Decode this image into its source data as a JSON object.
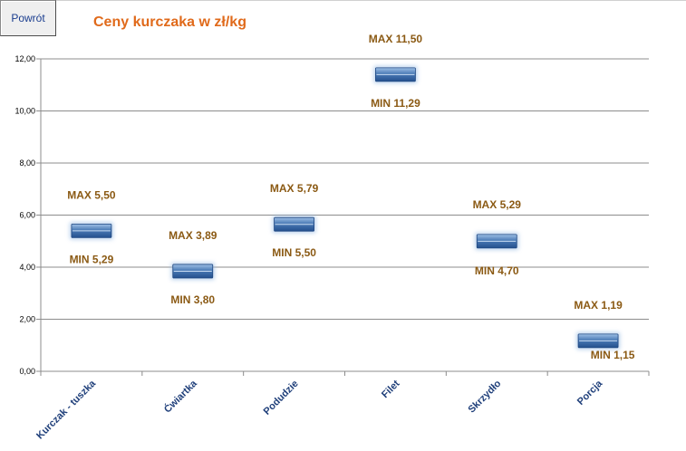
{
  "back_button": {
    "label": "Powrót"
  },
  "chart_data": {
    "type": "floating-bar",
    "title": "Ceny kurczaka w zł/kg",
    "xlabel": "",
    "ylabel": "",
    "ylim": [
      0,
      12
    ],
    "yticks": [
      "0,00",
      "2,00",
      "4,00",
      "6,00",
      "8,00",
      "10,00",
      "12,00"
    ],
    "grid": true,
    "legend": "none",
    "categories": [
      "Kurczak - tuszka",
      "Ćwiartka",
      "Podudzie",
      "Filet",
      "Skrzydło",
      "Porcja"
    ],
    "series": [
      {
        "values": [
          {
            "min": 5.29,
            "max": 5.5
          },
          {
            "min": 3.8,
            "max": 3.89
          },
          {
            "min": 5.5,
            "max": 5.79
          },
          {
            "min": 11.29,
            "max": 11.5
          },
          {
            "min": 4.7,
            "max": 5.29
          },
          {
            "min": 1.15,
            "max": 1.19
          }
        ]
      }
    ],
    "max_labels": [
      "MAX 5,50",
      "MAX 3,89",
      "MAX 5,79",
      "MAX 11,50",
      "MAX 5,29",
      "MAX 1,19"
    ],
    "min_labels": [
      "MIN 5,29",
      "MIN 3,80",
      "MIN 5,50",
      "MIN 11,29",
      "MIN 4,70",
      "MIN 1,15"
    ],
    "colors": {
      "bar": "#4a7ab5",
      "bar_dark": "#24508e",
      "highlight": "#e06a1b",
      "label": "#8b5a14",
      "title": "#e06a1b",
      "category": "#1f3f7a",
      "grid": "#8c8c8c"
    }
  }
}
